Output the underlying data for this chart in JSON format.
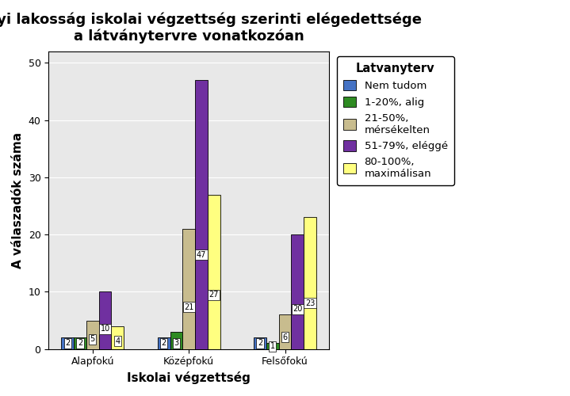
{
  "title": "A helyi lakosság iskolai végzettség szerinti elégedettsége\na látványtervre vonatkozóan",
  "xlabel": "Iskolai végzettség",
  "ylabel": "A válaszadók száma",
  "legend_title": "Latvanyterv",
  "categories": [
    "Alapfokú",
    "Középfokú",
    "Felsőfokú"
  ],
  "series": [
    {
      "label": "Nem tudom",
      "color": "#4472C4",
      "values": [
        2,
        2,
        2
      ]
    },
    {
      "label": "1-20%, alig",
      "color": "#2E8B22",
      "values": [
        2,
        3,
        1
      ]
    },
    {
      "label": "21-50%,\nmérsékelten",
      "color": "#C8BC8E",
      "values": [
        5,
        21,
        6
      ]
    },
    {
      "label": "51-79%, eléggé",
      "color": "#7030A0",
      "values": [
        10,
        47,
        20
      ]
    },
    {
      "label": "80-100%,\nmaximálisan",
      "color": "#FFFF80",
      "values": [
        4,
        27,
        23
      ]
    }
  ],
  "ylim": [
    0,
    52
  ],
  "yticks": [
    0,
    10,
    20,
    30,
    40,
    50
  ],
  "bar_width": 0.13,
  "figure_bg": "#FFFFFF",
  "plot_bg_color": "#E8E8E8",
  "title_fontsize": 13,
  "axis_label_fontsize": 11,
  "tick_fontsize": 9,
  "legend_fontsize": 9.5
}
